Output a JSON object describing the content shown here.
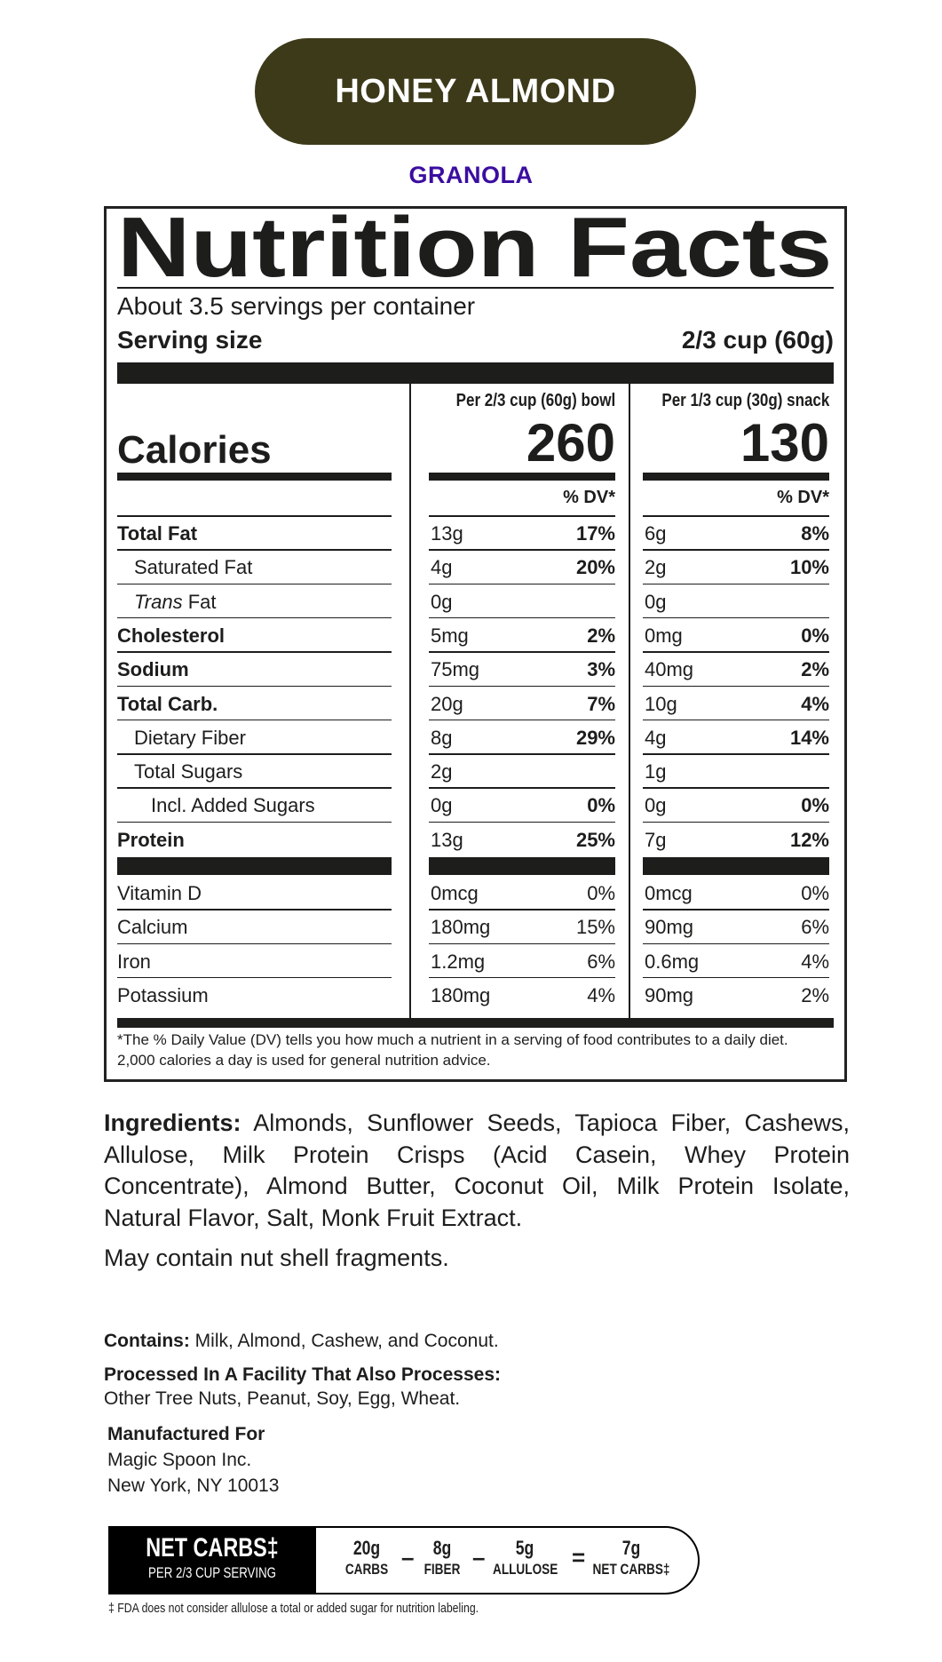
{
  "product": {
    "name": "HONEY ALMOND",
    "type": "GRANOLA",
    "pill_color": "#3d3a1a",
    "type_color": "#3b0ea0"
  },
  "nutrition": {
    "title": "Nutrition Facts",
    "servings": "About 3.5 servings per container",
    "serving_size_label": "Serving size",
    "serving_size_value": "2/3 cup (60g)",
    "calories_label": "Calories",
    "columns": [
      {
        "header": "Per 2/3 cup (60g) bowl",
        "calories": "260",
        "dv_header": "% DV*"
      },
      {
        "header": "Per 1/3 cup (30g) snack",
        "calories": "130",
        "dv_header": "% DV*"
      }
    ],
    "nutrients": [
      {
        "name": "Total Fat",
        "style": "bold",
        "indent": 0,
        "a": "13g",
        "a_dv": "17%",
        "b": "6g",
        "b_dv": "8%"
      },
      {
        "name": "Saturated Fat",
        "style": "normal",
        "indent": 1,
        "a": "4g",
        "a_dv": "20%",
        "b": "2g",
        "b_dv": "10%"
      },
      {
        "name": "Trans Fat",
        "style": "trans",
        "indent": 1,
        "a": "0g",
        "a_dv": "",
        "b": "0g",
        "b_dv": ""
      },
      {
        "name": "Cholesterol",
        "style": "bold",
        "indent": 0,
        "a": "5mg",
        "a_dv": "2%",
        "b": "0mg",
        "b_dv": "0%"
      },
      {
        "name": "Sodium",
        "style": "bold",
        "indent": 0,
        "a": "75mg",
        "a_dv": "3%",
        "b": "40mg",
        "b_dv": "2%"
      },
      {
        "name": "Total Carb.",
        "style": "bold",
        "indent": 0,
        "a": "20g",
        "a_dv": "7%",
        "b": "10g",
        "b_dv": "4%"
      },
      {
        "name": "Dietary Fiber",
        "style": "normal",
        "indent": 1,
        "a": "8g",
        "a_dv": "29%",
        "b": "4g",
        "b_dv": "14%"
      },
      {
        "name": "Total Sugars",
        "style": "normal",
        "indent": 1,
        "a": "2g",
        "a_dv": "",
        "b": "1g",
        "b_dv": ""
      },
      {
        "name": "Incl. Added Sugars",
        "style": "normal",
        "indent": 2,
        "a": "0g",
        "a_dv": "0%",
        "b": "0g",
        "b_dv": "0%"
      },
      {
        "name": "Protein",
        "style": "bold",
        "indent": 0,
        "a": "13g",
        "a_dv": "25%",
        "b": "7g",
        "b_dv": "12%"
      }
    ],
    "vitamins": [
      {
        "name": "Vitamin D",
        "a": "0mcg",
        "a_dv": "0%",
        "b": "0mcg",
        "b_dv": "0%"
      },
      {
        "name": "Calcium",
        "a": "180mg",
        "a_dv": "15%",
        "b": "90mg",
        "b_dv": "6%"
      },
      {
        "name": "Iron",
        "a": "1.2mg",
        "a_dv": "6%",
        "b": "0.6mg",
        "b_dv": "4%"
      },
      {
        "name": "Potassium",
        "a": "180mg",
        "a_dv": "4%",
        "b": "90mg",
        "b_dv": "2%"
      }
    ],
    "footnote": "*The % Daily Value (DV) tells you how much a nutrient in a serving of food contributes to a daily diet. 2,000 calories a day is used for general nutrition advice."
  },
  "ingredients": {
    "label": "Ingredients:",
    "text": " Almonds, Sunflower Seeds, Tapioca Fiber, Cashews, Allulose, Milk Protein Crisps (Acid Casein, Whey Protein Concentrate), Almond Butter, Coconut Oil, Milk Protein Isolate, Natural Flavor, Salt, Monk Fruit Extract.",
    "warning": "May contain nut shell fragments."
  },
  "allergens": {
    "contains_label": "Contains:",
    "contains_text": " Milk, Almond, Cashew, and Coconut.",
    "facility_label": "Processed In A Facility That Also Processes:",
    "facility_text": "Other Tree Nuts, Peanut, Soy, Egg, Wheat."
  },
  "manufacturer": {
    "label": "Manufactured For",
    "name": "Magic Spoon Inc.",
    "address": "New York, NY 10013"
  },
  "net_carbs": {
    "title": "NET CARBS‡",
    "subtitle": "PER 2/3 CUP SERVING",
    "items": [
      {
        "value": "20g",
        "label": "CARBS"
      },
      {
        "value": "8g",
        "label": "FIBER"
      },
      {
        "value": "5g",
        "label": "ALLULOSE"
      },
      {
        "value": "7g",
        "label": "NET CARBS‡"
      }
    ],
    "operators": [
      "–",
      "–",
      "="
    ],
    "footnote": "‡ FDA does not consider allulose a total or added sugar for nutrition labeling."
  }
}
